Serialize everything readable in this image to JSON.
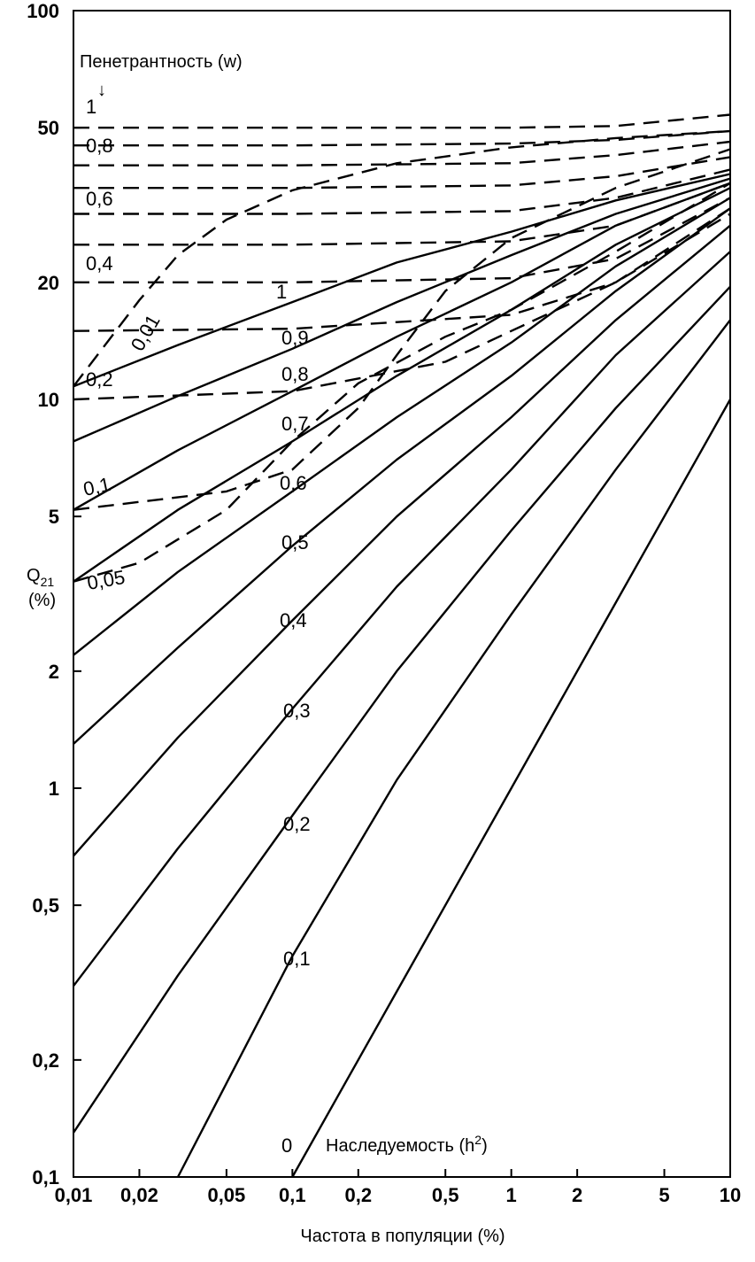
{
  "chart_data": {
    "type": "line",
    "x_scale": "log",
    "y_scale": "log",
    "xlim": [
      0.01,
      10
    ],
    "ylim": [
      0.1,
      100
    ],
    "grid": false,
    "x_ticks": [
      {
        "value": 0.01,
        "label": "0,01"
      },
      {
        "value": 0.02,
        "label": "0,02"
      },
      {
        "value": 0.05,
        "label": "0,05"
      },
      {
        "value": 0.1,
        "label": "0,1"
      },
      {
        "value": 0.2,
        "label": "0,2"
      },
      {
        "value": 0.5,
        "label": "0,5"
      },
      {
        "value": 1,
        "label": "1"
      },
      {
        "value": 2,
        "label": "2"
      },
      {
        "value": 5,
        "label": "5"
      },
      {
        "value": 10,
        "label": "10"
      }
    ],
    "y_ticks": [
      {
        "value": 0.1,
        "label": "0,1"
      },
      {
        "value": 0.2,
        "label": "0,2"
      },
      {
        "value": 0.5,
        "label": "0,5"
      },
      {
        "value": 1,
        "label": "1"
      },
      {
        "value": 2,
        "label": "2"
      },
      {
        "value": 5,
        "label": "5"
      },
      {
        "value": 10,
        "label": "10"
      },
      {
        "value": 20,
        "label": "20"
      },
      {
        "value": 50,
        "label": "50"
      },
      {
        "value": 100,
        "label": "100"
      }
    ],
    "xlabel": "Частота в популяции  (%)",
    "ylabel": "Q",
    "ylabel_sub": "21",
    "ylabel_unit": "(%)",
    "heritability_title": "Наследуемость  (h",
    "heritability_title_sup": "2",
    "heritability_title_end": ")",
    "penetrance_title": "Пенетрантность (w)",
    "penetrance_arrow": "↓",
    "heritability_series": [
      {
        "name": "1",
        "style": "solid",
        "points": [
          [
            0.01,
            10.8
          ],
          [
            0.03,
            13.8
          ],
          [
            0.1,
            17.8
          ],
          [
            0.3,
            22.5
          ],
          [
            1,
            27
          ],
          [
            3,
            32.5
          ],
          [
            10,
            38
          ]
        ]
      },
      {
        "name": "0,9",
        "style": "solid",
        "points": [
          [
            0.01,
            7.8
          ],
          [
            0.03,
            10.2
          ],
          [
            0.1,
            13.5
          ],
          [
            0.3,
            17.8
          ],
          [
            1,
            23.5
          ],
          [
            3,
            30
          ],
          [
            10,
            37
          ]
        ]
      },
      {
        "name": "0,8",
        "style": "solid",
        "points": [
          [
            0.01,
            5.2
          ],
          [
            0.03,
            7.4
          ],
          [
            0.1,
            10.5
          ],
          [
            0.3,
            14.5
          ],
          [
            1,
            20
          ],
          [
            3,
            28
          ],
          [
            10,
            36
          ]
        ]
      },
      {
        "name": "0,7",
        "style": "solid",
        "points": [
          [
            0.01,
            3.4
          ],
          [
            0.03,
            5.2
          ],
          [
            0.1,
            7.8
          ],
          [
            0.3,
            11.5
          ],
          [
            1,
            17
          ],
          [
            3,
            25
          ],
          [
            10,
            35
          ]
        ]
      },
      {
        "name": "0,6",
        "style": "solid",
        "points": [
          [
            0.01,
            2.2
          ],
          [
            0.03,
            3.6
          ],
          [
            0.1,
            5.8
          ],
          [
            0.3,
            9
          ],
          [
            1,
            14
          ],
          [
            3,
            22
          ],
          [
            10,
            33
          ]
        ]
      },
      {
        "name": "0,5",
        "style": "solid",
        "points": [
          [
            0.01,
            1.3
          ],
          [
            0.03,
            2.3
          ],
          [
            0.1,
            4.2
          ],
          [
            0.3,
            7
          ],
          [
            1,
            11.5
          ],
          [
            3,
            19
          ],
          [
            10,
            31
          ]
        ]
      },
      {
        "name": "0,4",
        "style": "solid",
        "points": [
          [
            0.01,
            0.67
          ],
          [
            0.03,
            1.35
          ],
          [
            0.1,
            2.7
          ],
          [
            0.3,
            5
          ],
          [
            1,
            9
          ],
          [
            3,
            16
          ],
          [
            10,
            28
          ]
        ]
      },
      {
        "name": "0,3",
        "style": "solid",
        "points": [
          [
            0.01,
            0.31
          ],
          [
            0.03,
            0.7
          ],
          [
            0.1,
            1.6
          ],
          [
            0.3,
            3.3
          ],
          [
            1,
            6.6
          ],
          [
            3,
            13
          ],
          [
            10,
            24
          ]
        ]
      },
      {
        "name": "0,2",
        "style": "solid",
        "points": [
          [
            0.01,
            0.13
          ],
          [
            0.03,
            0.33
          ],
          [
            0.1,
            0.85
          ],
          [
            0.3,
            2
          ],
          [
            1,
            4.6
          ],
          [
            3,
            9.5
          ],
          [
            10,
            19.5
          ]
        ]
      },
      {
        "name": "0,1",
        "style": "solid",
        "points": [
          [
            0.03,
            0.1
          ],
          [
            0.1,
            0.37
          ],
          [
            0.3,
            1.05
          ],
          [
            1,
            2.8
          ],
          [
            3,
            6.6
          ],
          [
            10,
            16
          ]
        ]
      },
      {
        "name": "0",
        "style": "solid",
        "points": [
          [
            0.1,
            0.1
          ],
          [
            0.3,
            0.3
          ],
          [
            1,
            1
          ],
          [
            3,
            3
          ],
          [
            10,
            10
          ]
        ]
      }
    ],
    "penetrance_series": [
      {
        "name": "1",
        "style": "dashed",
        "points": [
          [
            0.01,
            50
          ],
          [
            0.1,
            50
          ],
          [
            1,
            50
          ],
          [
            3,
            50.5
          ],
          [
            10,
            54
          ]
        ]
      },
      {
        "name": "",
        "style": "dashed",
        "points": [
          [
            0.01,
            45
          ],
          [
            0.1,
            45
          ],
          [
            1,
            45.5
          ],
          [
            3,
            46.5
          ],
          [
            10,
            49
          ]
        ]
      },
      {
        "name": "0,8",
        "style": "dashed",
        "points": [
          [
            0.01,
            40
          ],
          [
            0.1,
            40
          ],
          [
            1,
            40.5
          ],
          [
            3,
            42.5
          ],
          [
            10,
            46
          ]
        ]
      },
      {
        "name": "",
        "style": "dashed",
        "points": [
          [
            0.01,
            35
          ],
          [
            0.1,
            35
          ],
          [
            1,
            35.5
          ],
          [
            3,
            37.5
          ],
          [
            10,
            42
          ]
        ]
      },
      {
        "name": "0,6",
        "style": "dashed",
        "points": [
          [
            0.01,
            30
          ],
          [
            0.1,
            30
          ],
          [
            1,
            30.5
          ],
          [
            3,
            33
          ],
          [
            10,
            39
          ]
        ]
      },
      {
        "name": "",
        "style": "dashed",
        "points": [
          [
            0.01,
            25
          ],
          [
            0.1,
            25
          ],
          [
            1,
            25.5
          ],
          [
            3,
            28
          ],
          [
            10,
            36
          ]
        ]
      },
      {
        "name": "0,4",
        "style": "dashed",
        "points": [
          [
            0.01,
            20
          ],
          [
            0.1,
            20
          ],
          [
            1,
            20.5
          ],
          [
            3,
            23
          ],
          [
            10,
            33
          ]
        ]
      },
      {
        "name": "",
        "style": "dashed",
        "points": [
          [
            0.01,
            15
          ],
          [
            0.1,
            15.2
          ],
          [
            1,
            16.5
          ],
          [
            3,
            20
          ],
          [
            10,
            31
          ]
        ]
      },
      {
        "name": "0,2",
        "style": "dashed",
        "points": [
          [
            0.01,
            10
          ],
          [
            0.1,
            10.5
          ],
          [
            0.5,
            12.5
          ],
          [
            1,
            15
          ],
          [
            3,
            20
          ],
          [
            10,
            30
          ]
        ]
      }
    ],
    "frequency_series": [
      {
        "name": "0,01",
        "style": "dashed",
        "points": [
          [
            0.01,
            10.8
          ],
          [
            0.02,
            18
          ],
          [
            0.03,
            23.5
          ],
          [
            0.05,
            29
          ],
          [
            0.1,
            34.5
          ],
          [
            0.3,
            40.5
          ],
          [
            1,
            44.5
          ],
          [
            3,
            47
          ],
          [
            10,
            49
          ]
        ]
      },
      {
        "name": "0,1",
        "style": "dashed",
        "points": [
          [
            0.01,
            5.2
          ],
          [
            0.05,
            5.8
          ],
          [
            0.1,
            6.6
          ],
          [
            0.2,
            9.5
          ],
          [
            0.3,
            13
          ],
          [
            0.5,
            19
          ],
          [
            1,
            26
          ],
          [
            3,
            35
          ],
          [
            10,
            44
          ]
        ]
      },
      {
        "name": "0,05",
        "style": "dashed",
        "points": [
          [
            0.01,
            3.4
          ],
          [
            0.02,
            3.8
          ],
          [
            0.05,
            5.2
          ],
          [
            0.1,
            7.8
          ],
          [
            0.2,
            11
          ],
          [
            0.5,
            14.5
          ],
          [
            1,
            17
          ],
          [
            3,
            24
          ],
          [
            10,
            36
          ]
        ]
      }
    ]
  }
}
